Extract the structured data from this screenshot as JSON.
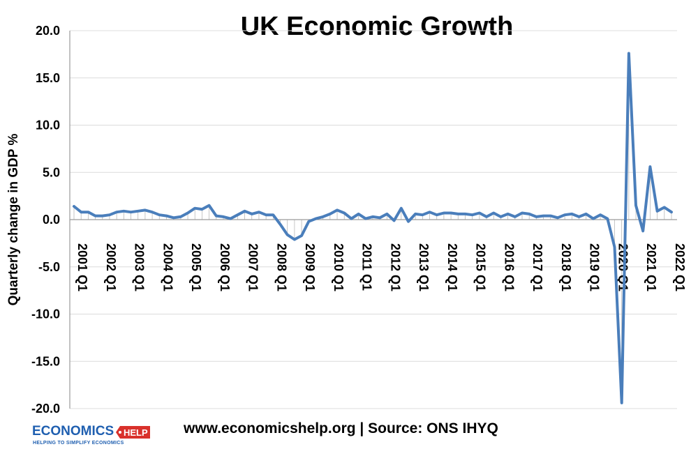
{
  "chart_data": {
    "type": "line",
    "title": "UK Economic Growth",
    "ylabel": "Quarterly change in GDP %",
    "xlabel": "",
    "ylim": [
      -20,
      20
    ],
    "yticks": [
      "20.0",
      "15.0",
      "10.0",
      "5.0",
      "0.0",
      "-5.0",
      "-10.0",
      "-15.0",
      "-20.0"
    ],
    "xtick_labels": [
      "2001 Q1",
      "2002 Q1",
      "2003 Q1",
      "2004 Q1",
      "2005 Q1",
      "2006 Q1",
      "2007 Q1",
      "2008 Q1",
      "2009 Q1",
      "2010 Q1",
      "2011 Q1",
      "2012 Q1",
      "2013 Q1",
      "2014 Q1",
      "2015 Q1",
      "2016 Q1",
      "2017 Q1",
      "2018 Q1",
      "2019 Q1",
      "2020 Q1",
      "2021 Q1",
      "2022 Q1"
    ],
    "grid": true,
    "line_color": "#4a7ebb",
    "start_period": "2001 Q1",
    "series": [
      {
        "values": [
          1.4,
          0.8,
          0.8,
          0.4,
          0.4,
          0.5,
          0.8,
          0.9,
          0.8,
          0.9,
          1.0,
          0.8,
          0.5,
          0.4,
          0.2,
          0.3,
          0.7,
          1.2,
          1.1,
          1.5,
          0.4,
          0.3,
          0.1,
          0.5,
          0.9,
          0.6,
          0.8,
          0.5,
          0.5,
          -0.5,
          -1.6,
          -2.1,
          -1.7,
          -0.2,
          0.1,
          0.3,
          0.6,
          1.0,
          0.7,
          0.1,
          0.6,
          0.1,
          0.3,
          0.2,
          0.6,
          -0.1,
          1.2,
          -0.2,
          0.6,
          0.5,
          0.8,
          0.5,
          0.7,
          0.7,
          0.6,
          0.6,
          0.5,
          0.7,
          0.3,
          0.7,
          0.3,
          0.6,
          0.3,
          0.7,
          0.6,
          0.3,
          0.4,
          0.4,
          0.2,
          0.5,
          0.6,
          0.3,
          0.6,
          0.1,
          0.5,
          0.1,
          -2.9,
          -19.4,
          17.6,
          1.5,
          -1.2,
          5.6,
          0.9,
          1.3,
          0.8
        ]
      }
    ]
  },
  "footer": {
    "source": "www.economicshelp.org | Source: ONS IHYQ",
    "logo_text": "ECONOMICS",
    "logo_badge": "HELP",
    "logo_tagline": "HELPING TO SIMPLIFY ECONOMICS"
  }
}
